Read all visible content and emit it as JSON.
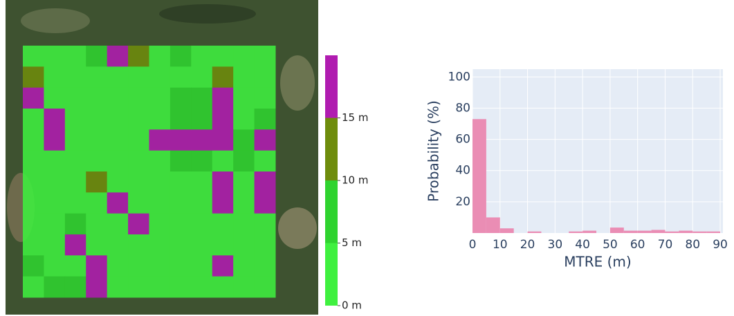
{
  "chart_data": [
    {
      "type": "heatmap",
      "z": [
        [
          2,
          2,
          2,
          7,
          17,
          12,
          2,
          7,
          2,
          2,
          2,
          2
        ],
        [
          12,
          2,
          2,
          2,
          2,
          2,
          2,
          2,
          2,
          12,
          2,
          2
        ],
        [
          17,
          2,
          2,
          2,
          2,
          2,
          2,
          7,
          7,
          17,
          2,
          2
        ],
        [
          2,
          17,
          2,
          2,
          2,
          2,
          2,
          7,
          7,
          17,
          2,
          7
        ],
        [
          2,
          17,
          2,
          2,
          2,
          2,
          17,
          17,
          17,
          17,
          7,
          17
        ],
        [
          2,
          2,
          2,
          2,
          2,
          2,
          2,
          7,
          7,
          2,
          7,
          2
        ],
        [
          2,
          2,
          2,
          12,
          2,
          2,
          2,
          2,
          2,
          17,
          2,
          17
        ],
        [
          2,
          2,
          2,
          2,
          17,
          2,
          2,
          2,
          2,
          17,
          2,
          17
        ],
        [
          2,
          2,
          7,
          2,
          2,
          17,
          2,
          2,
          2,
          2,
          2,
          2
        ],
        [
          2,
          2,
          17,
          2,
          2,
          2,
          2,
          2,
          2,
          2,
          2,
          2
        ],
        [
          7,
          2,
          2,
          17,
          2,
          2,
          2,
          2,
          2,
          17,
          2,
          2
        ],
        [
          2,
          7,
          7,
          17,
          2,
          2,
          2,
          2,
          2,
          2,
          2,
          2
        ]
      ],
      "colors": [
        "#3ff03f",
        "#2fd32f",
        "#6e8c0c",
        "#b01cb0"
      ],
      "zlim": [
        0,
        20
      ],
      "zticks": [
        {
          "value": 0,
          "label": "0 m"
        },
        {
          "value": 5,
          "label": "5 m"
        },
        {
          "value": 10,
          "label": "10 m"
        },
        {
          "value": 15,
          "label": "15 m"
        }
      ]
    },
    {
      "type": "histogram",
      "x_label": "MTRE (m)",
      "y_label": "Probability (%)",
      "bins": [
        0,
        5,
        10,
        15,
        20,
        25,
        30,
        35,
        40,
        45,
        50,
        55,
        60,
        65,
        70,
        75,
        80,
        85,
        90
      ],
      "values": [
        73,
        10,
        3,
        0,
        1,
        0,
        0,
        1,
        1.5,
        0,
        3.5,
        1.5,
        1.5,
        2,
        1,
        1.5,
        1,
        1
      ],
      "color": "#ea8db4",
      "xlim": [
        0,
        91
      ],
      "ylim": [
        0,
        105
      ],
      "xticks": [
        0,
        10,
        20,
        30,
        40,
        50,
        60,
        70,
        80,
        90
      ],
      "yticks": [
        20,
        40,
        60,
        80,
        100
      ],
      "grid": true
    }
  ]
}
